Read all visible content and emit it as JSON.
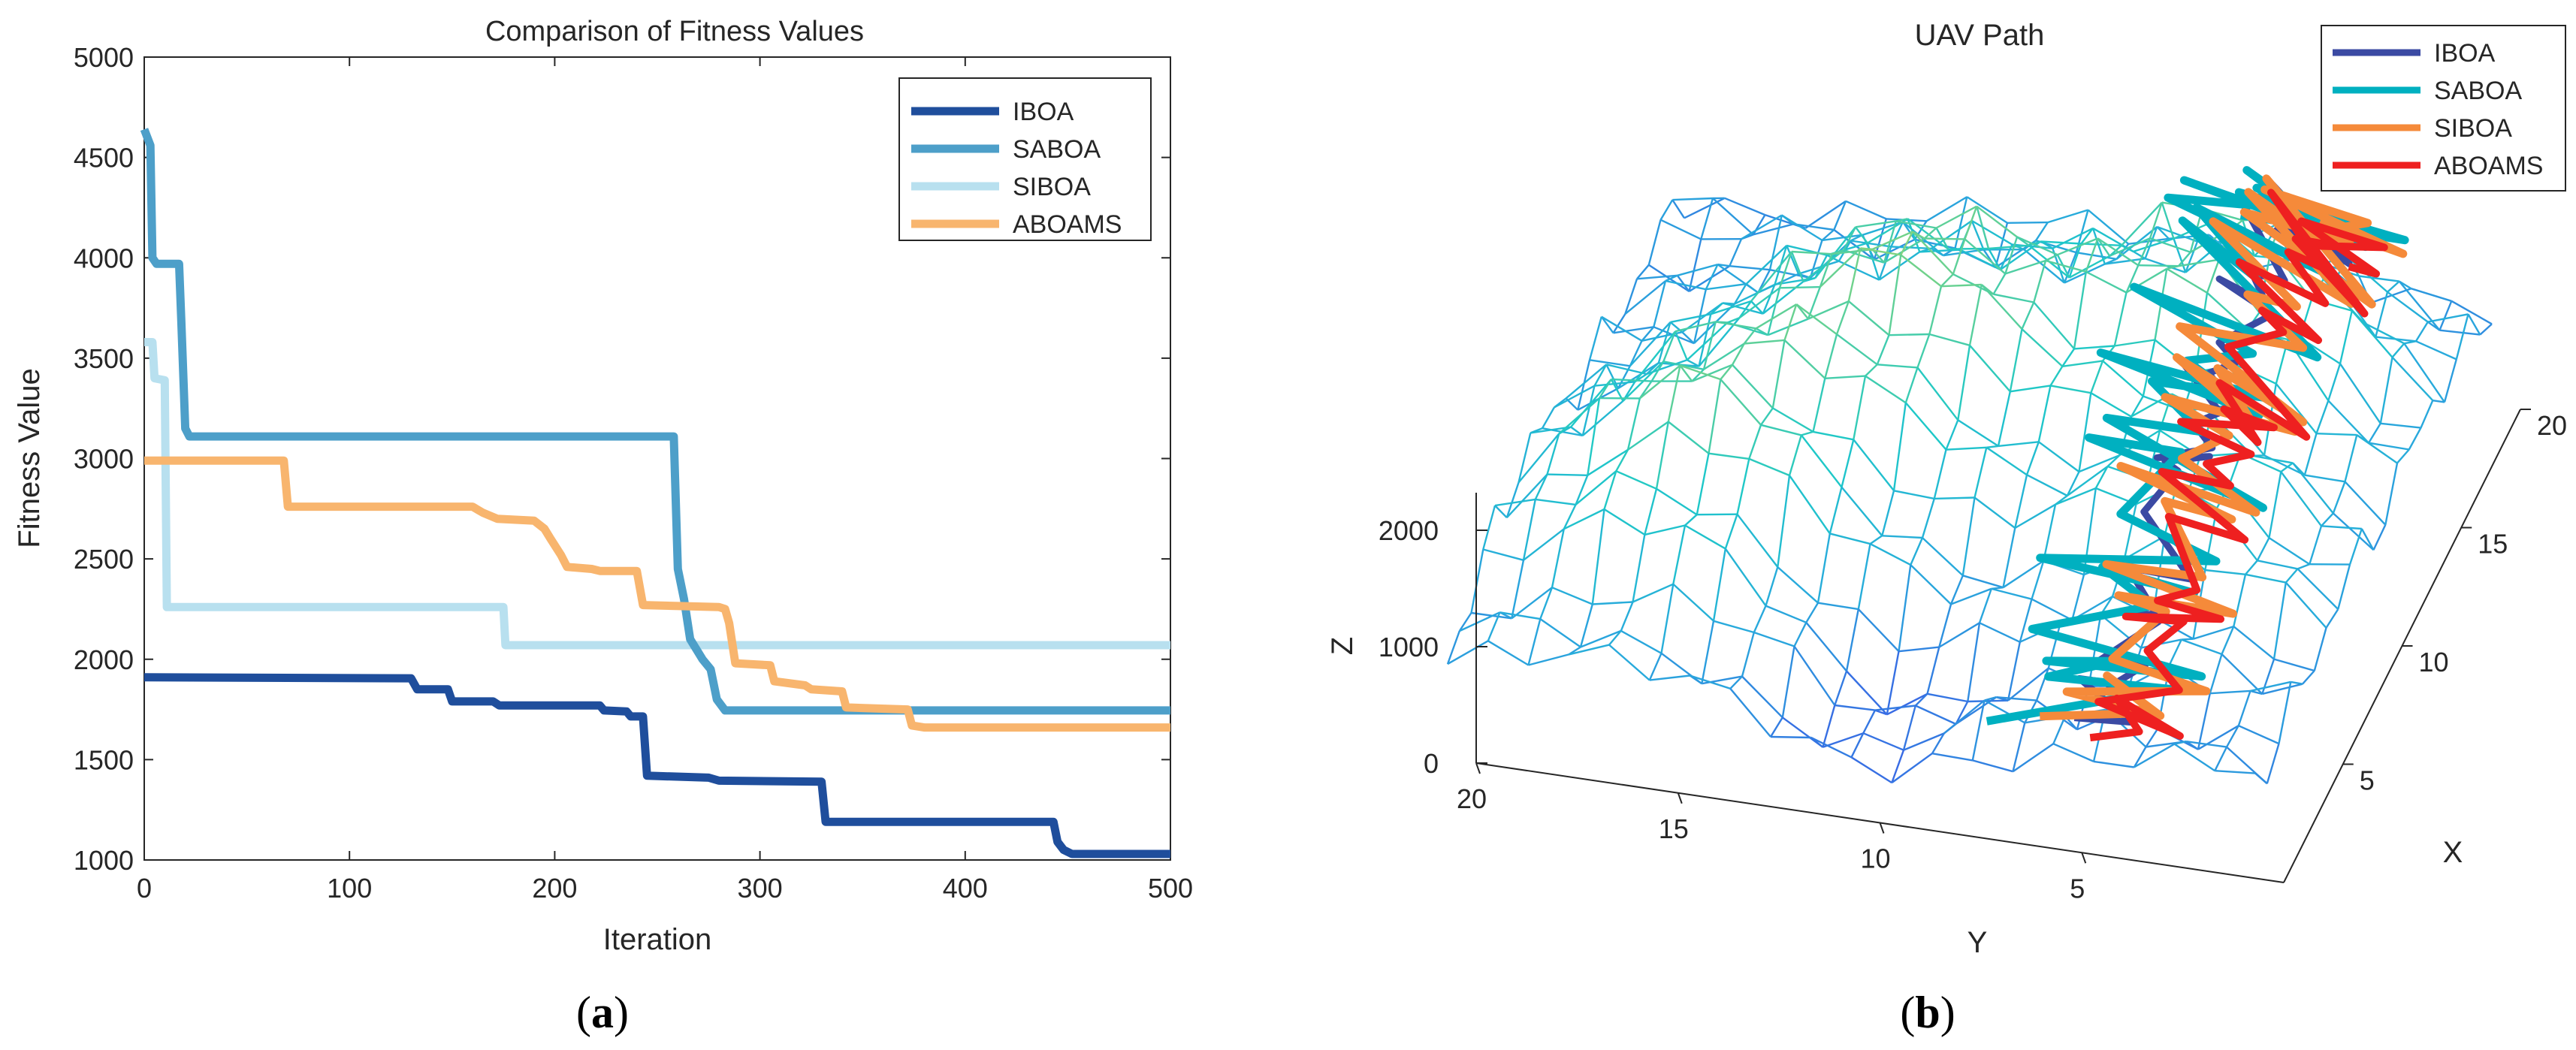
{
  "panel_labels": {
    "a": "a",
    "b": "b"
  },
  "chart_data": [
    {
      "type": "line",
      "title": "Comparison of Fitness Values",
      "xlabel": "Iteration",
      "ylabel": "Fitness Value",
      "xlim": [
        0,
        500
      ],
      "ylim": [
        1000,
        5000
      ],
      "xticks": [
        0,
        100,
        200,
        300,
        400,
        500
      ],
      "yticks": [
        1000,
        1500,
        2000,
        2500,
        3000,
        3500,
        4000,
        4500,
        5000
      ],
      "legend_position": "top-right",
      "series": [
        {
          "name": "IBOA",
          "color": "#1f4e9c",
          "points": [
            [
              0,
              1910
            ],
            [
              130,
              1905
            ],
            [
              133,
              1850
            ],
            [
              148,
              1850
            ],
            [
              150,
              1790
            ],
            [
              170,
              1790
            ],
            [
              173,
              1770
            ],
            [
              222,
              1770
            ],
            [
              224,
              1745
            ],
            [
              235,
              1740
            ],
            [
              237,
              1715
            ],
            [
              243,
              1715
            ],
            [
              245,
              1420
            ],
            [
              275,
              1410
            ],
            [
              280,
              1395
            ],
            [
              330,
              1390
            ],
            [
              332,
              1190
            ],
            [
              443,
              1190
            ],
            [
              445,
              1090
            ],
            [
              448,
              1050
            ],
            [
              452,
              1030
            ],
            [
              500,
              1030
            ]
          ]
        },
        {
          "name": "SABOA",
          "color": "#4d9fc9",
          "points": [
            [
              0,
              4640
            ],
            [
              3,
              4560
            ],
            [
              4,
              4000
            ],
            [
              6,
              3970
            ],
            [
              17,
              3970
            ],
            [
              18,
              3700
            ],
            [
              20,
              3150
            ],
            [
              22,
              3110
            ],
            [
              258,
              3110
            ],
            [
              260,
              2450
            ],
            [
              263,
              2300
            ],
            [
              266,
              2100
            ],
            [
              272,
              2000
            ],
            [
              276,
              1950
            ],
            [
              279,
              1800
            ],
            [
              283,
              1745
            ],
            [
              500,
              1745
            ]
          ]
        },
        {
          "name": "SIBOA",
          "color": "#b8e0ef",
          "points": [
            [
              0,
              3580
            ],
            [
              4,
              3580
            ],
            [
              5,
              3400
            ],
            [
              10,
              3390
            ],
            [
              11,
              2260
            ],
            [
              175,
              2260
            ],
            [
              176,
              2070
            ],
            [
              500,
              2070
            ]
          ]
        },
        {
          "name": "ABOAMS",
          "color": "#f8b56e",
          "points": [
            [
              0,
              2990
            ],
            [
              68,
              2990
            ],
            [
              70,
              2760
            ],
            [
              160,
              2760
            ],
            [
              165,
              2730
            ],
            [
              172,
              2700
            ],
            [
              190,
              2690
            ],
            [
              195,
              2650
            ],
            [
              198,
              2600
            ],
            [
              203,
              2520
            ],
            [
              206,
              2460
            ],
            [
              218,
              2450
            ],
            [
              222,
              2440
            ],
            [
              240,
              2440
            ],
            [
              243,
              2270
            ],
            [
              280,
              2260
            ],
            [
              283,
              2250
            ],
            [
              285,
              2180
            ],
            [
              288,
              1980
            ],
            [
              305,
              1970
            ],
            [
              307,
              1890
            ],
            [
              322,
              1870
            ],
            [
              325,
              1850
            ],
            [
              340,
              1840
            ],
            [
              342,
              1760
            ],
            [
              372,
              1750
            ],
            [
              374,
              1670
            ],
            [
              380,
              1660
            ],
            [
              500,
              1660
            ]
          ]
        }
      ]
    },
    {
      "type": "surface3d",
      "title": "UAV Path",
      "xlabel": "X",
      "ylabel": "Y",
      "zlabel": "Z",
      "xticks": [
        5,
        10,
        15,
        20
      ],
      "yticks": [
        5,
        10,
        15,
        20
      ],
      "zticks": [
        0,
        1000,
        2000
      ],
      "legend_position": "top-right",
      "series": [
        {
          "name": "IBOA",
          "color": "#3b4aa3"
        },
        {
          "name": "SABOA",
          "color": "#00b0c0"
        },
        {
          "name": "SIBOA",
          "color": "#f58a3a"
        },
        {
          "name": "ABOAMS",
          "color": "#ee2020"
        }
      ]
    }
  ]
}
